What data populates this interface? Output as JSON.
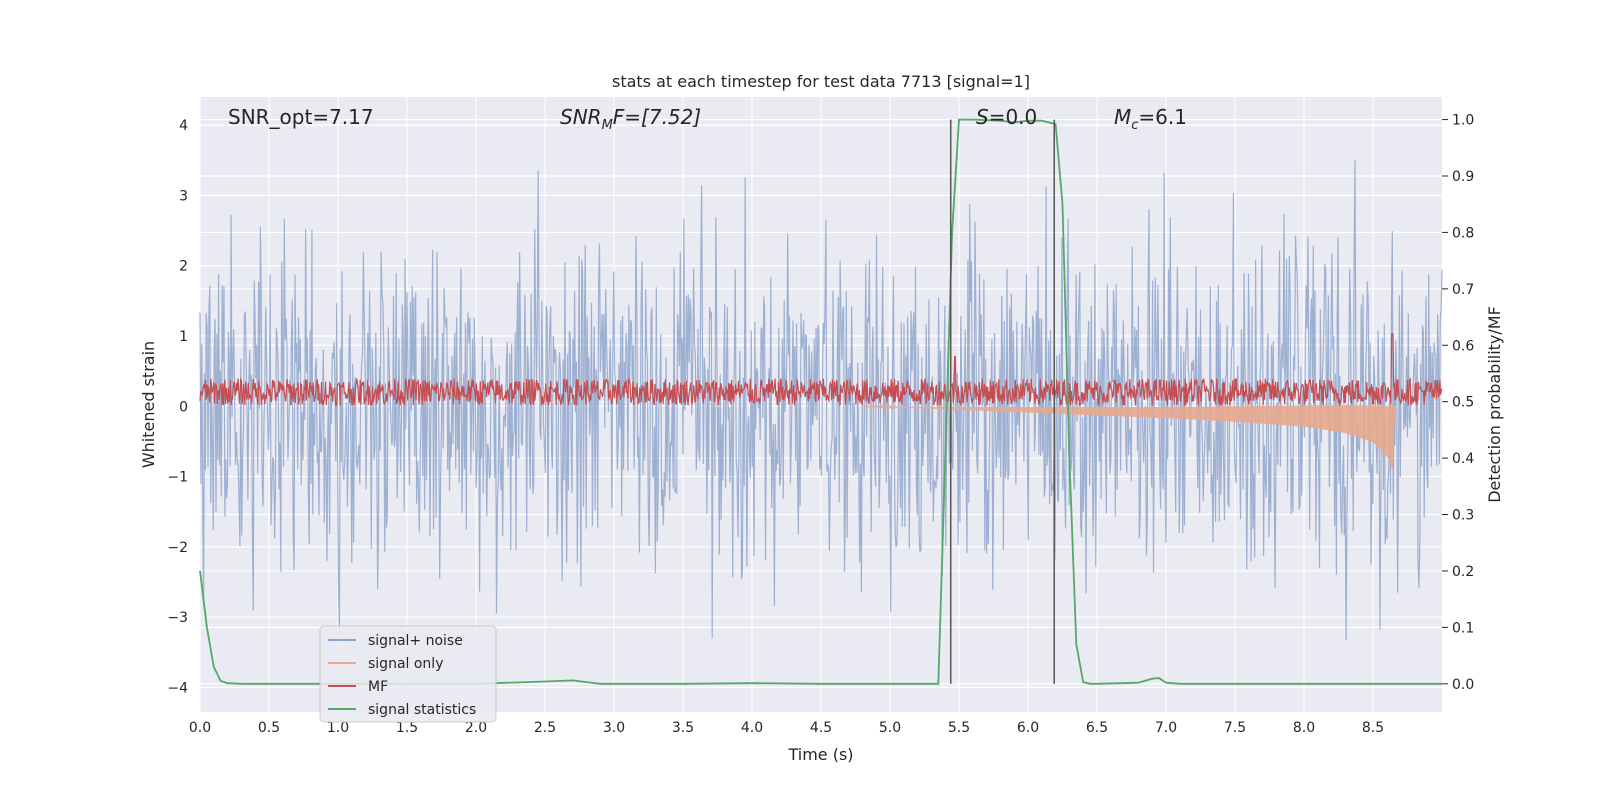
{
  "chart_data": {
    "type": "line",
    "title": "stats at each timestep for test data 7713 [signal=1]",
    "xlabel": "Time (s)",
    "ylabel_left": "Whitened strain",
    "ylabel_right": "Detection probability/MF",
    "xlim": [
      0.0,
      9.0
    ],
    "ylim_left": [
      -4.35,
      4.4
    ],
    "ylim_right": [
      -0.05,
      1.04
    ],
    "x_ticks": [
      "0.0",
      "0.5",
      "1.0",
      "1.5",
      "2.0",
      "2.5",
      "3.0",
      "3.5",
      "4.0",
      "4.5",
      "5.0",
      "5.5",
      "6.0",
      "6.5",
      "7.0",
      "7.5",
      "8.0",
      "8.5"
    ],
    "y_left_ticks": [
      "4",
      "3",
      "2",
      "1",
      "0",
      "−1",
      "−2",
      "−3",
      "−4"
    ],
    "y_right_ticks": [
      "1.0",
      "0.9",
      "0.8",
      "0.7",
      "0.6",
      "0.5",
      "0.4",
      "0.3",
      "0.2",
      "0.1",
      "0.0"
    ],
    "grid": true,
    "annotations": {
      "snr_opt": "SNR_opt=7.17",
      "snr_mf_base": "SNR",
      "snr_mf_sub": "M",
      "snr_mf_rest": "F=[7.52]",
      "s_base": "S",
      "s_rest": "=0.0",
      "mc_base": "M",
      "mc_sub": "c",
      "mc_rest": "=6.1"
    },
    "vertical_lines_x": [
      5.44,
      6.19
    ],
    "legend_position": "lower-left",
    "series": [
      {
        "name": "signal+ noise",
        "color": "#8fa6cc",
        "axis": "left",
        "kind": "noise",
        "amplitude_range": [
          -3.6,
          3.5
        ]
      },
      {
        "name": "signal only",
        "color": "#e8a98d",
        "axis": "left",
        "kind": "chirp",
        "envelope": {
          "x": [
            4.8,
            5.5,
            6.0,
            6.5,
            7.0,
            7.5,
            8.0,
            8.3,
            8.5,
            8.6,
            8.64,
            8.66
          ],
          "half_width": [
            0.0,
            0.02,
            0.04,
            0.06,
            0.08,
            0.11,
            0.15,
            0.2,
            0.26,
            0.35,
            0.45,
            0.0
          ],
          "offset": [
            0.0,
            -0.03,
            -0.05,
            -0.07,
            -0.09,
            -0.11,
            -0.14,
            -0.18,
            -0.25,
            -0.35,
            -0.45,
            0.0
          ]
        }
      },
      {
        "name": "MF",
        "color": "#c44e52",
        "axis": "right",
        "kind": "noise",
        "baseline": 0.51,
        "amplitude": 0.03,
        "peaks": [
          {
            "x": 8.64,
            "y": 0.62
          },
          {
            "x": 5.47,
            "y": 0.58
          }
        ]
      },
      {
        "name": "signal statistics",
        "color": "#55a868",
        "axis": "right",
        "x": [
          0.0,
          0.05,
          0.1,
          0.15,
          0.2,
          0.3,
          1.0,
          2.0,
          2.5,
          2.7,
          2.8,
          2.9,
          3.5,
          4.0,
          4.5,
          5.0,
          5.35,
          5.45,
          5.5,
          5.6,
          5.8,
          5.9,
          6.0,
          6.1,
          6.2,
          6.25,
          6.3,
          6.35,
          6.4,
          6.45,
          6.5,
          6.8,
          6.9,
          6.95,
          7.0,
          7.1,
          8.0,
          9.0
        ],
        "y": [
          0.2,
          0.1,
          0.03,
          0.005,
          0.001,
          0.0,
          0.0,
          0.0,
          0.004,
          0.006,
          0.003,
          0.0,
          0.0,
          0.001,
          0.0,
          0.0,
          0.0,
          0.8,
          1.0,
          1.0,
          0.998,
          0.995,
          0.998,
          0.998,
          0.992,
          0.85,
          0.4,
          0.07,
          0.003,
          0.0,
          0.0,
          0.002,
          0.009,
          0.01,
          0.002,
          0.0,
          0.0,
          0.0
        ]
      }
    ]
  }
}
